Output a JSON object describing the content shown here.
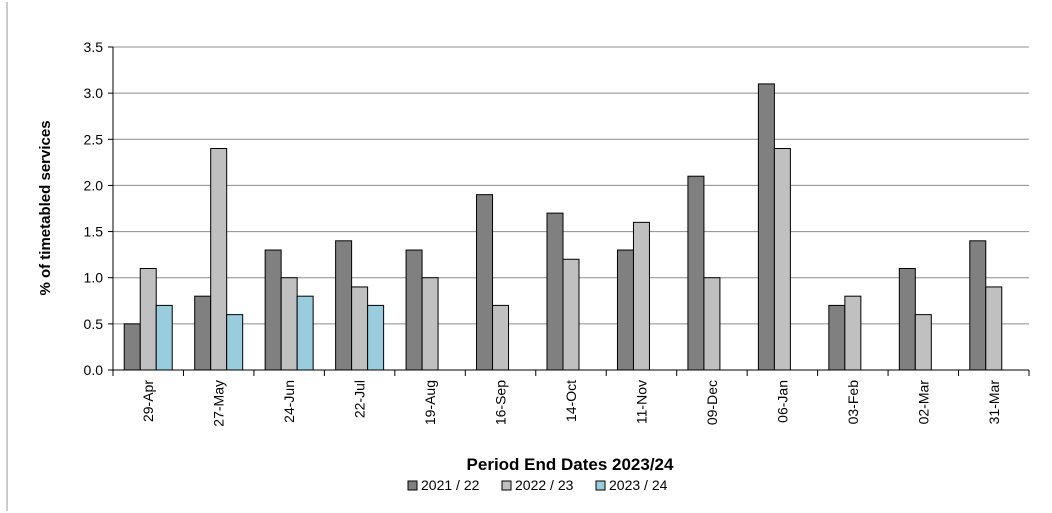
{
  "chart_data": {
    "type": "bar",
    "title": "",
    "xlabel": "Period End Dates 2023/24",
    "ylabel": "% of timetabled services",
    "ylim": [
      0,
      3.5
    ],
    "ytick_step": 0.5,
    "yticks": [
      "0.0",
      "0.5",
      "1.0",
      "1.5",
      "2.0",
      "2.5",
      "3.0",
      "3.5"
    ],
    "grid": true,
    "legend_position": "bottom",
    "categories": [
      "29-Apr",
      "27-May",
      "24-Jun",
      "22-Jul",
      "19-Aug",
      "16-Sep",
      "14-Oct",
      "11-Nov",
      "09-Dec",
      "06-Jan",
      "03-Feb",
      "02-Mar",
      "31-Mar"
    ],
    "series": [
      {
        "name": "2021 / 22",
        "color": "#808080",
        "values": [
          0.5,
          0.8,
          1.3,
          1.4,
          1.3,
          1.9,
          1.7,
          1.3,
          2.1,
          3.1,
          0.7,
          1.1,
          1.4
        ]
      },
      {
        "name": "2022 / 23",
        "color": "#c0c0c0",
        "values": [
          1.1,
          2.4,
          1.0,
          0.9,
          1.0,
          0.7,
          1.2,
          1.6,
          1.0,
          2.4,
          0.8,
          0.6,
          0.9
        ]
      },
      {
        "name": "2023 / 24",
        "color": "#99ccdd",
        "values": [
          0.7,
          0.6,
          0.8,
          0.7,
          null,
          null,
          null,
          null,
          null,
          null,
          null,
          null,
          null
        ]
      }
    ]
  }
}
